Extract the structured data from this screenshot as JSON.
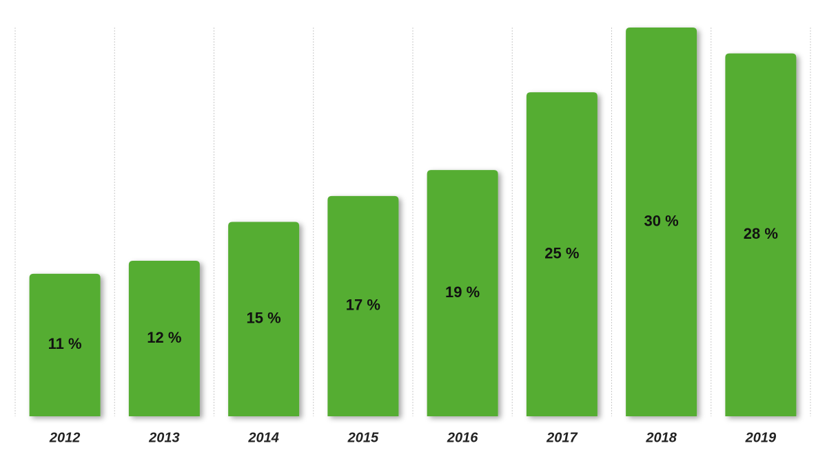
{
  "chart_data": {
    "type": "bar",
    "categories": [
      "2012",
      "2013",
      "2014",
      "2015",
      "2016",
      "2017",
      "2018",
      "2019"
    ],
    "values": [
      11,
      12,
      15,
      17,
      19,
      25,
      30,
      28
    ],
    "value_labels": [
      "11 %",
      "12 %",
      "15 %",
      "17 %",
      "19 %",
      "25 %",
      "30 %",
      "28 %"
    ],
    "color": "#54ad32"
  }
}
